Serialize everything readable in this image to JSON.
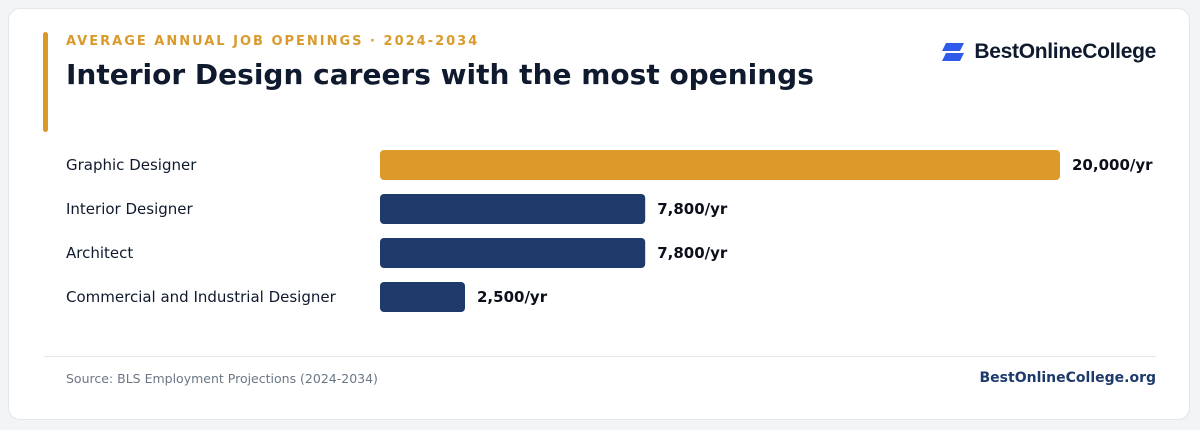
{
  "header": {
    "eyebrow": "AVERAGE ANNUAL JOB OPENINGS · 2024-2034",
    "title": "Interior Design careers with the most openings"
  },
  "brand": {
    "name": "BestOnlineCollege",
    "icon": "stacked-parallelogram-logo-icon",
    "icon_color": "#2f5bea"
  },
  "footer": {
    "source": "Source: BLS Employment Projections (2024-2034)",
    "site": "BestOnlineCollege.org"
  },
  "colors": {
    "highlight": "#dc9a2a",
    "bar": "#1e3a6a",
    "text": "#0f1a2e"
  },
  "chart_data": {
    "type": "bar",
    "orientation": "horizontal",
    "categories": [
      "Graphic Designer",
      "Interior Designer",
      "Architect",
      "Commercial and Industrial Designer"
    ],
    "values": [
      20000,
      7800,
      7800,
      2500
    ],
    "value_labels": [
      "20,000/yr",
      "7,800/yr",
      "7,800/yr",
      "2,500/yr"
    ],
    "highlight_index": 0,
    "xlim": [
      0,
      20000
    ],
    "grid": false
  }
}
